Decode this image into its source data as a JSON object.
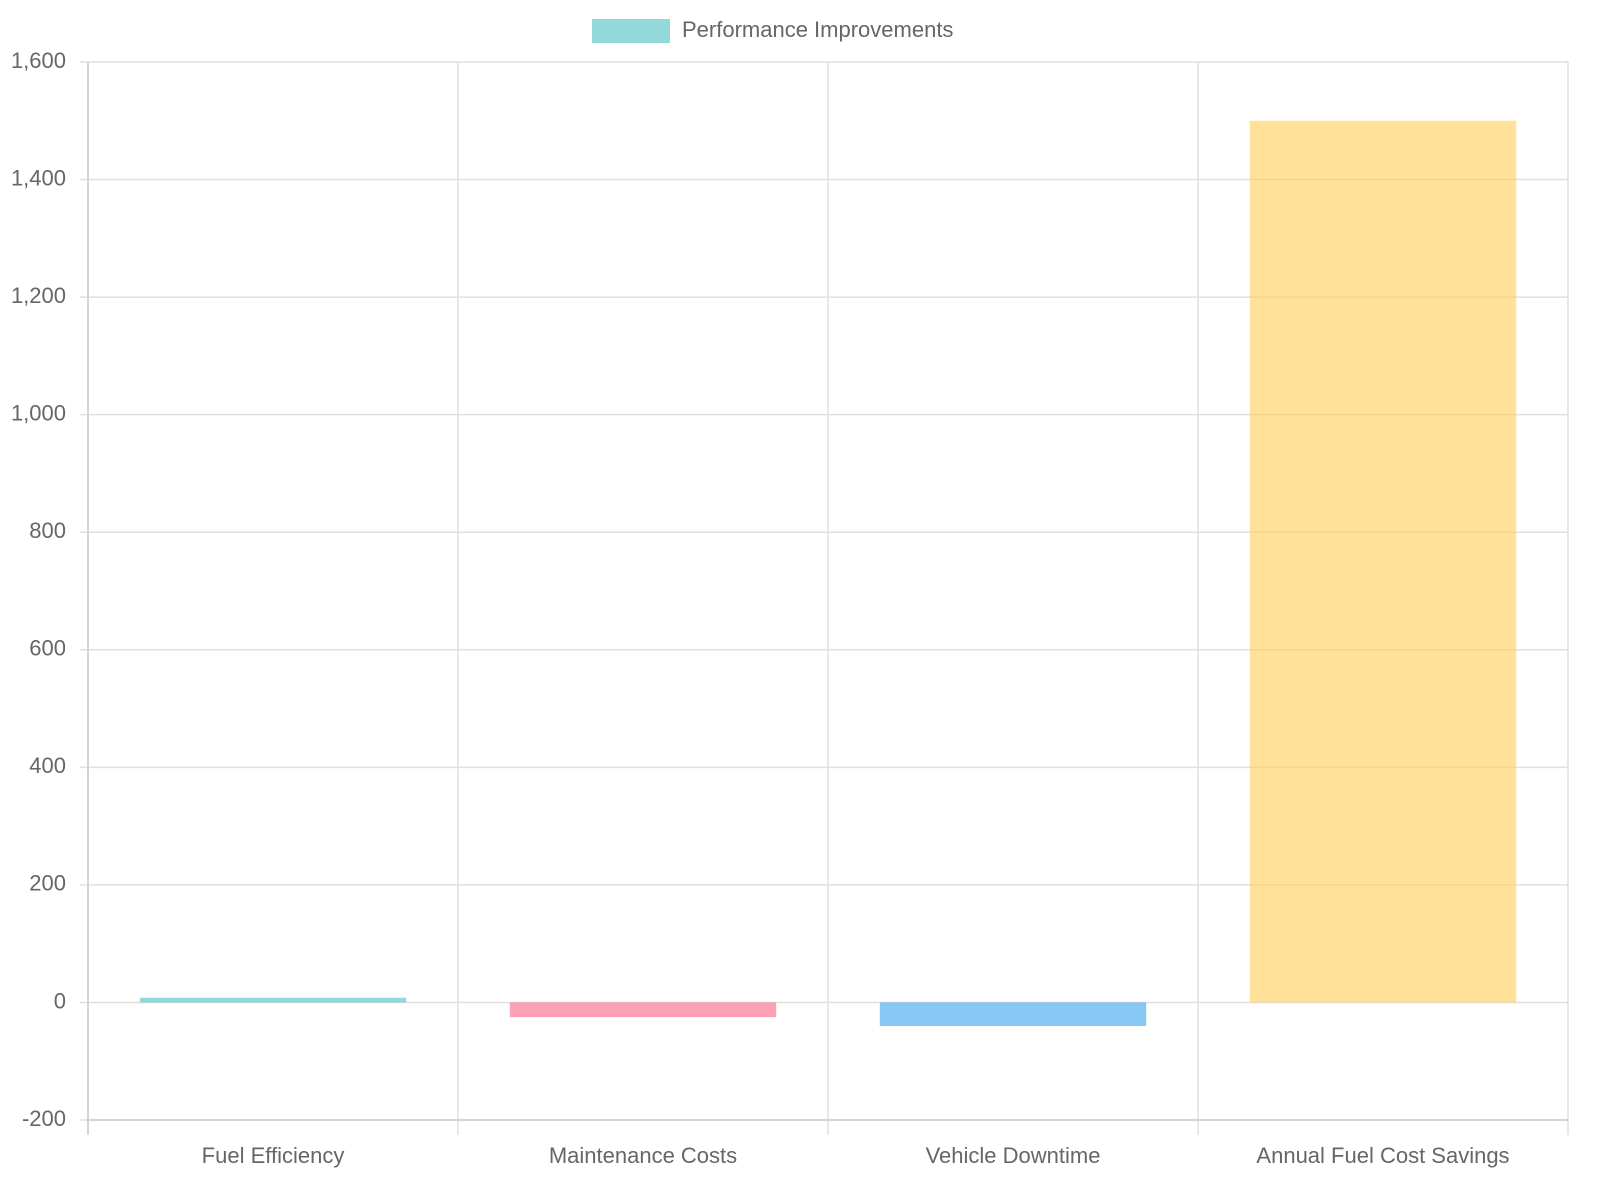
{
  "chart_data": {
    "type": "bar",
    "categories": [
      "Fuel Efficiency",
      "Maintenance Costs",
      "Vehicle Downtime",
      "Annual Fuel Cost Savings"
    ],
    "series": [
      {
        "name": "Performance Improvements",
        "colors": [
          "rgba(75,192,192,0.6)",
          "rgba(255,99,132,0.6)",
          "rgba(54,162,235,0.6)",
          "rgba(255,205,86,0.6)"
        ],
        "values": [
          8,
          -25,
          -40,
          1500
        ]
      }
    ],
    "ylim": [
      -200,
      1600
    ],
    "yticks": [
      -200,
      0,
      200,
      400,
      600,
      800,
      {
        "value": 1000,
        "label": "1,000"
      },
      {
        "value": 1200,
        "label": "1,200"
      },
      {
        "value": 1400,
        "label": "1,400"
      },
      {
        "value": 1600,
        "label": "1,600"
      }
    ],
    "grid": true,
    "legend": "top"
  }
}
